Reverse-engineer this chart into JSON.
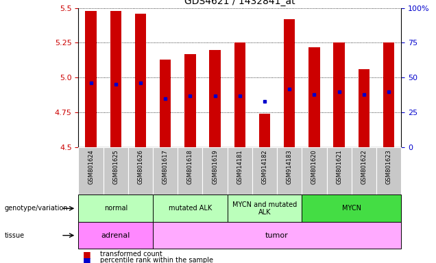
{
  "title": "GDS4621 / 1432841_at",
  "samples": [
    "GSM801624",
    "GSM801625",
    "GSM801626",
    "GSM801617",
    "GSM801618",
    "GSM801619",
    "GSM914181",
    "GSM914182",
    "GSM914183",
    "GSM801620",
    "GSM801621",
    "GSM801622",
    "GSM801623"
  ],
  "bar_tops": [
    5.48,
    5.48,
    5.46,
    5.13,
    5.17,
    5.2,
    5.25,
    4.74,
    5.42,
    5.22,
    5.25,
    5.06,
    5.25
  ],
  "bar_base": 4.5,
  "blue_dots_y": [
    4.96,
    4.95,
    4.96,
    4.85,
    4.87,
    4.87,
    4.87,
    4.83,
    4.92,
    4.88,
    4.9,
    4.88,
    4.9
  ],
  "ylim": [
    4.5,
    5.5
  ],
  "yticks_left": [
    4.5,
    4.75,
    5.0,
    5.25,
    5.5
  ],
  "yticks_right": [
    0,
    25,
    50,
    75,
    100
  ],
  "bar_color": "#cc0000",
  "dot_color": "#0000cc",
  "geno_groups": [
    {
      "label": "normal",
      "start": 0,
      "end": 3,
      "color": "#bbffbb"
    },
    {
      "label": "mutated ALK",
      "start": 3,
      "end": 6,
      "color": "#bbffbb"
    },
    {
      "label": "MYCN and mutated\nALK",
      "start": 6,
      "end": 9,
      "color": "#bbffbb"
    },
    {
      "label": "MYCN",
      "start": 9,
      "end": 13,
      "color": "#44dd44"
    }
  ],
  "tissue_groups": [
    {
      "label": "adrenal",
      "start": 0,
      "end": 3,
      "color": "#ff88ff"
    },
    {
      "label": "tumor",
      "start": 3,
      "end": 13,
      "color": "#ffaaff"
    }
  ],
  "genotype_label": "genotype/variation",
  "tissue_label": "tissue",
  "legend_red": "transformed count",
  "legend_blue": "percentile rank within the sample",
  "tick_label_color_left": "#cc0000",
  "tick_label_color_right": "#0000cc",
  "bar_width": 0.45
}
